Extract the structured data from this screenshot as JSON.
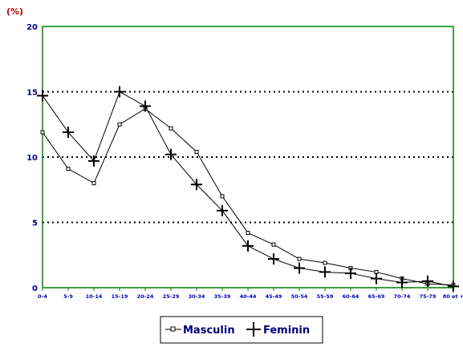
{
  "chart_data": {
    "type": "line",
    "unit_label": "(%)",
    "title": "",
    "xlabel": "",
    "ylabel": "",
    "ylim": [
      0,
      20
    ],
    "yticks": [
      0,
      5,
      10,
      15,
      20
    ],
    "grid": "horizontal-dotted",
    "legend_position": "bottom-center",
    "categories": [
      "0-4",
      "5-9",
      "10-14",
      "15-19",
      "20-24",
      "25-29",
      "30-34",
      "35-39",
      "40-44",
      "45-49",
      "50-54",
      "55-59",
      "60-64",
      "65-69",
      "70-74",
      "75-79",
      "80 et +"
    ],
    "series": [
      {
        "name": "Masculin",
        "marker": "open-square",
        "values": [
          11.9,
          9.1,
          8.0,
          12.5,
          13.7,
          12.2,
          10.4,
          7.0,
          4.2,
          3.3,
          2.2,
          1.9,
          1.5,
          1.2,
          0.7,
          0.3,
          0.2
        ]
      },
      {
        "name": "Feminin",
        "marker": "plus",
        "values": [
          14.7,
          11.9,
          9.7,
          15.0,
          13.9,
          10.2,
          7.9,
          5.9,
          3.2,
          2.2,
          1.5,
          1.2,
          1.1,
          0.7,
          0.4,
          0.5,
          0.1
        ]
      }
    ]
  },
  "colors": {
    "frame": "#008000",
    "ytick_text": "#000080",
    "xtick_text": "#0000c0",
    "unit_text": "#c00000",
    "line": "#000000",
    "legend_text": "#000080"
  }
}
